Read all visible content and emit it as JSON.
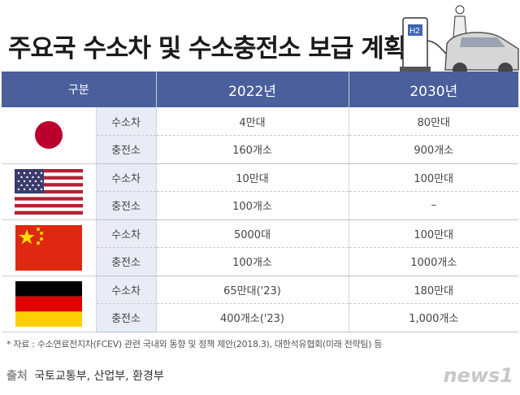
{
  "title": "주요국 수소차 및 수소충전소 보급 계획",
  "illustration": {
    "h2_sign": "H2"
  },
  "table": {
    "headers": [
      "구분",
      "2022년",
      "2030년"
    ],
    "countries": [
      {
        "flag": "japan-flag",
        "rows": [
          {
            "kind": "수소차",
            "v2022": "4만대",
            "v2030": "80만대"
          },
          {
            "kind": "충전소",
            "v2022": "160개소",
            "v2030": "900개소"
          }
        ]
      },
      {
        "flag": "usa-flag",
        "rows": [
          {
            "kind": "수소차",
            "v2022": "10만대",
            "v2030": "100만대"
          },
          {
            "kind": "충전소",
            "v2022": "100개소",
            "v2030": "–"
          }
        ]
      },
      {
        "flag": "china-flag",
        "rows": [
          {
            "kind": "수소차",
            "v2022": "5000대",
            "v2030": "100만대"
          },
          {
            "kind": "충전소",
            "v2022": "100개소",
            "v2030": "1000개소"
          }
        ]
      },
      {
        "flag": "germany-flag",
        "rows": [
          {
            "kind": "수소차",
            "v2022": "65만대('23)",
            "v2030": "180만대"
          },
          {
            "kind": "충전소",
            "v2022": "400개소('23)",
            "v2030": "1,000개소"
          }
        ]
      }
    ]
  },
  "source_note": "* 자료 : 수소연료전지차(FCEV) 관련 국내외 동향 및 정책 제안(2018.3), 대한석유협회(미래 전략팀) 등",
  "credit": {
    "label": "출처",
    "text": "국토교통부, 산업부, 환경부"
  },
  "logo_text": "news1",
  "colors": {
    "header_bg": "#4a5f9b",
    "kind_bg": "#e8ecf6"
  }
}
